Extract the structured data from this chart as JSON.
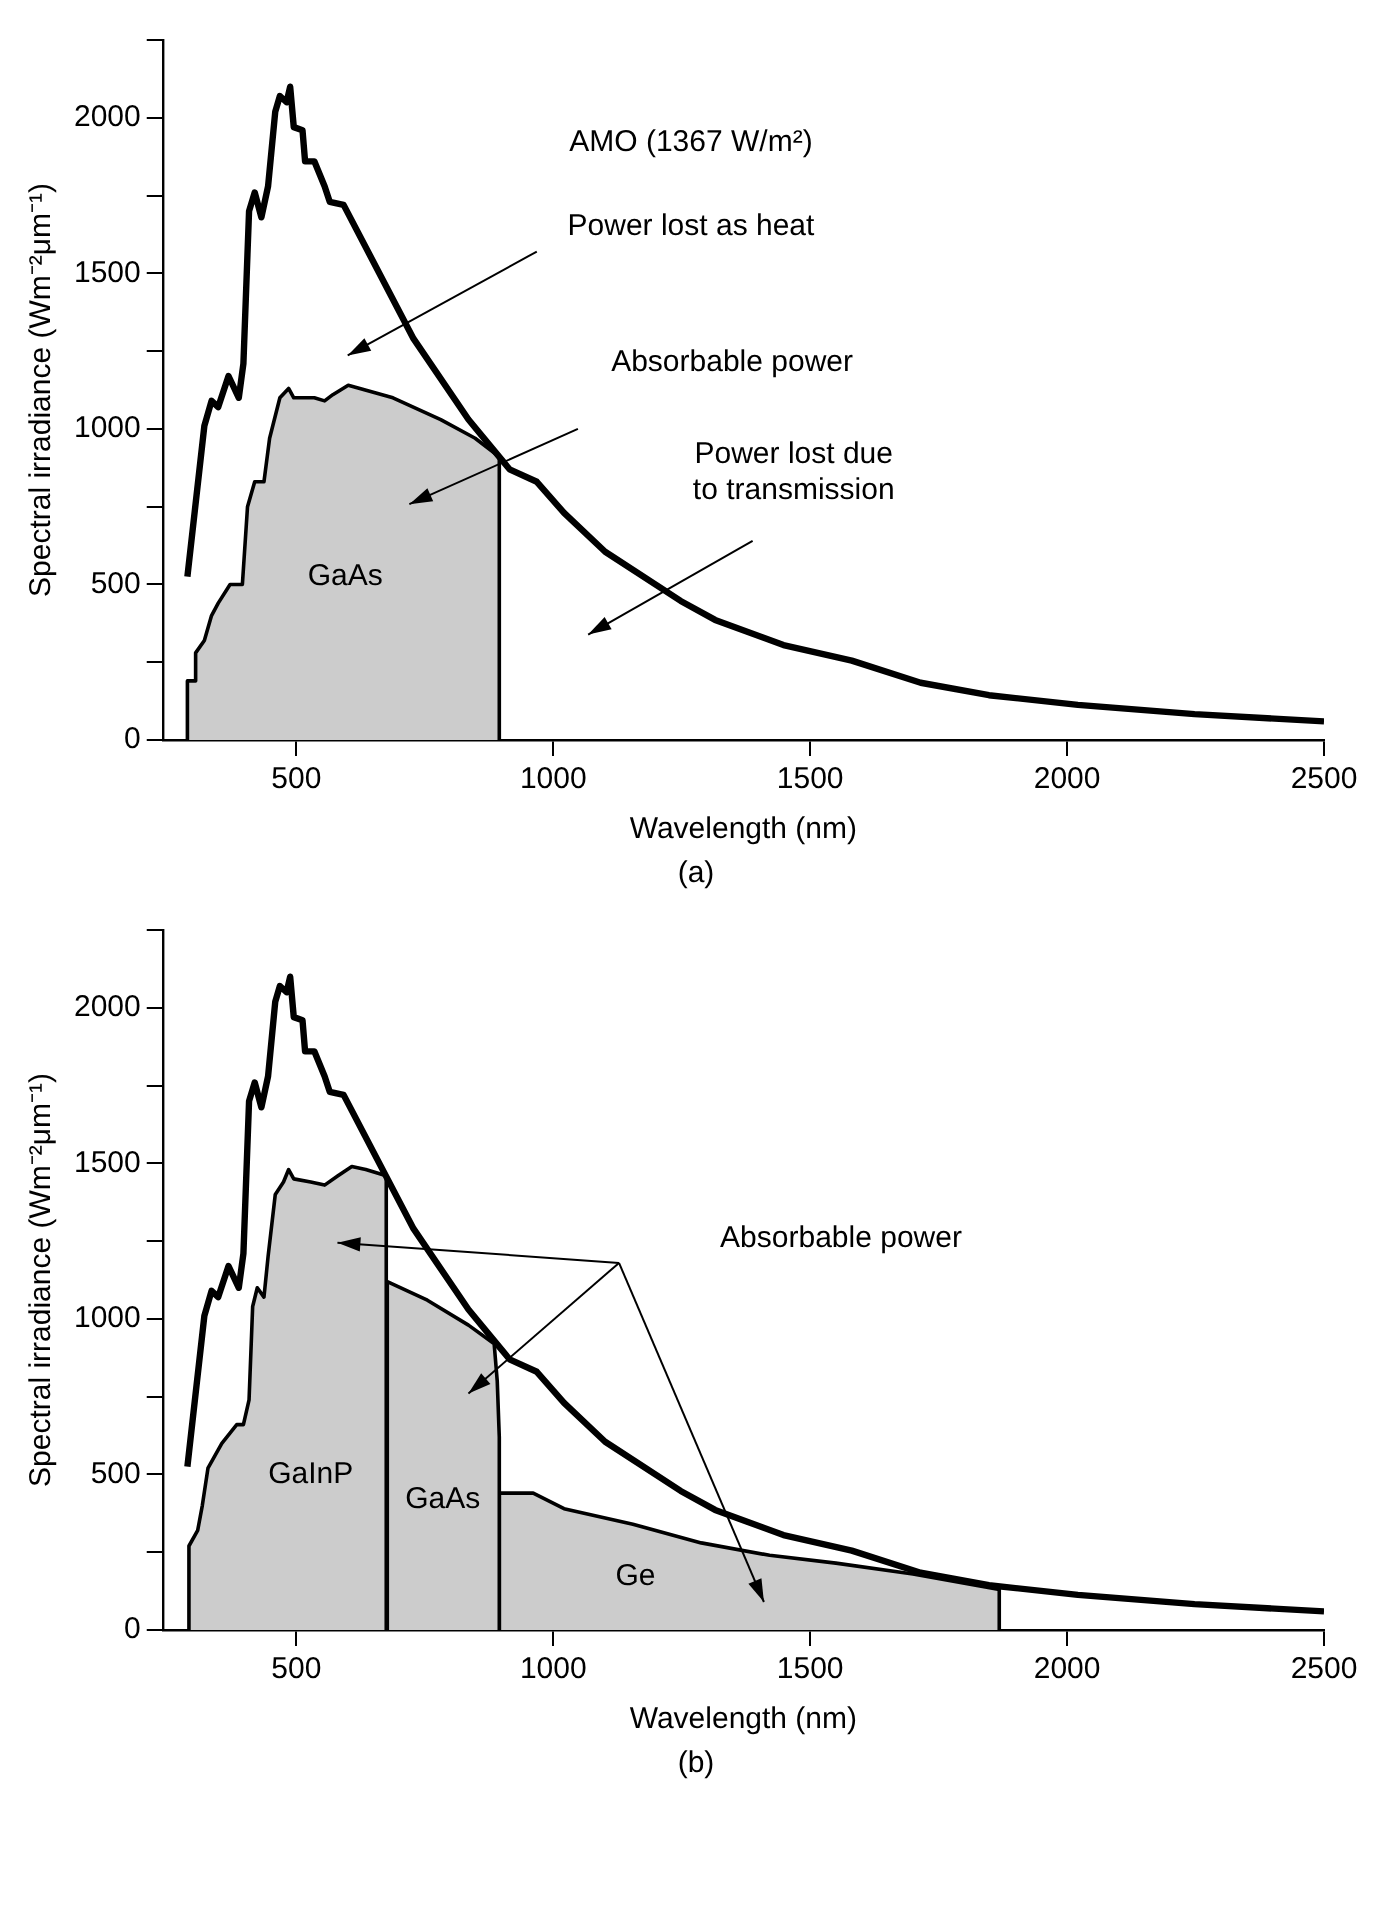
{
  "chart_data": [
    {
      "type": "line",
      "title": "(a)",
      "xlabel": "Wavelength (nm)",
      "ylabel": "Spectral irradiance (Wm⁻²μm⁻¹)",
      "xlim": [
        240,
        2500
      ],
      "xticks": [
        500,
        1000,
        1500,
        2000,
        2500
      ],
      "ylim": [
        0,
        2250
      ],
      "yticks": [
        0,
        {
          "value": 250,
          "label": null
        },
        500,
        {
          "value": 750,
          "label": null
        },
        1000,
        {
          "value": 1250,
          "label": null
        },
        1500,
        {
          "value": 1750,
          "label": null
        },
        2000,
        {
          "value": 2250,
          "label": null
        }
      ],
      "legend": false,
      "annotations": [
        "AMO (1367 W/m²)",
        "Power lost as heat",
        "Absorbable power",
        "Power lost due to transmission"
      ],
      "series": [
        {
          "type": "line",
          "color": "#000000",
          "x": [
            288,
            321,
            335,
            348,
            368,
            388,
            397,
            408,
            419,
            432,
            445,
            459,
            468,
            481,
            488,
            495,
            512,
            517,
            535,
            555,
            565,
            592,
            728,
            835,
            895,
            915,
            968,
            1021,
            1101,
            1248,
            1315,
            1448,
            1581,
            1715,
            1848,
            2021,
            2248,
            2500
          ],
          "values": [
            525,
            1010,
            1090,
            1070,
            1170,
            1100,
            1210,
            1700,
            1760,
            1680,
            1780,
            2020,
            2070,
            2050,
            2100,
            1970,
            1960,
            1860,
            1860,
            1780,
            1730,
            1720,
            1290,
            1030,
            910,
            870,
            830,
            730,
            605,
            447,
            386,
            305,
            255,
            184,
            144,
            113,
            83,
            60
          ]
        },
        {
          "type": "area",
          "name": "GaAs",
          "color": "#cccccc",
          "x": [
            288,
            288,
            301,
            304,
            321,
            335,
            348,
            371,
            395,
            405,
            419,
            437,
            448,
            468,
            485,
            495,
            535,
            555,
            571,
            601,
            688,
            781,
            848,
            895,
            895
          ],
          "values": [
            0,
            190,
            190,
            280,
            320,
            400,
            440,
            500,
            500,
            750,
            830,
            830,
            970,
            1100,
            1130,
            1100,
            1100,
            1090,
            1110,
            1140,
            1100,
            1030,
            970,
            910,
            0
          ]
        }
      ]
    },
    {
      "type": "line",
      "title": "(b)",
      "xlabel": "Wavelength (nm)",
      "ylabel": "Spectral irradiance (Wm⁻²μm⁻¹)",
      "xlim": [
        240,
        2500
      ],
      "xticks": [
        500,
        1000,
        1500,
        2000,
        2500
      ],
      "ylim": [
        0,
        2250
      ],
      "yticks": [
        0,
        {
          "value": 250,
          "label": null
        },
        500,
        {
          "value": 750,
          "label": null
        },
        1000,
        {
          "value": 1250,
          "label": null
        },
        1500,
        {
          "value": 1750,
          "label": null
        },
        2000,
        {
          "value": 2250,
          "label": null
        }
      ],
      "legend": false,
      "annotations": [
        "Absorbable power"
      ],
      "series": [
        {
          "type": "line",
          "color": "#000000",
          "x": [
            288,
            321,
            335,
            348,
            368,
            388,
            397,
            408,
            419,
            432,
            445,
            459,
            468,
            481,
            488,
            495,
            512,
            517,
            535,
            555,
            565,
            592,
            728,
            835,
            895,
            915,
            968,
            1021,
            1101,
            1248,
            1315,
            1448,
            1581,
            1715,
            1848,
            2021,
            2248,
            2500
          ],
          "values": [
            525,
            1010,
            1090,
            1070,
            1170,
            1100,
            1210,
            1700,
            1760,
            1680,
            1780,
            2020,
            2070,
            2050,
            2100,
            1970,
            1960,
            1860,
            1860,
            1780,
            1730,
            1720,
            1290,
            1030,
            910,
            870,
            830,
            730,
            605,
            447,
            386,
            305,
            255,
            184,
            144,
            113,
            83,
            60
          ]
        },
        {
          "type": "area",
          "name": "GaInP",
          "color": "#cccccc",
          "x": [
            291,
            291,
            308,
            317,
            328,
            355,
            384,
            397,
            408,
            415,
            424,
            437,
            445,
            459,
            475,
            485,
            495,
            528,
            555,
            581,
            608,
            635,
            675,
            675
          ],
          "values": [
            0,
            270,
            320,
            400,
            520,
            600,
            660,
            660,
            740,
            1040,
            1100,
            1070,
            1200,
            1400,
            1440,
            1480,
            1450,
            1440,
            1430,
            1460,
            1490,
            1480,
            1460,
            0
          ]
        },
        {
          "type": "area",
          "name": "GaAs",
          "color": "#cccccc",
          "x": [
            675,
            677,
            755,
            835,
            885,
            891,
            895,
            895
          ],
          "values": [
            0,
            1120,
            1060,
            980,
            920,
            800,
            620,
            0
          ]
        },
        {
          "type": "area",
          "name": "Ge",
          "color": "#cccccc",
          "x": [
            895,
            895,
            961,
            1021,
            1155,
            1288,
            1421,
            1550,
            1700,
            1868,
            1868
          ],
          "values": [
            0,
            440,
            440,
            390,
            340,
            280,
            240,
            215,
            180,
            130,
            0
          ]
        }
      ]
    }
  ]
}
